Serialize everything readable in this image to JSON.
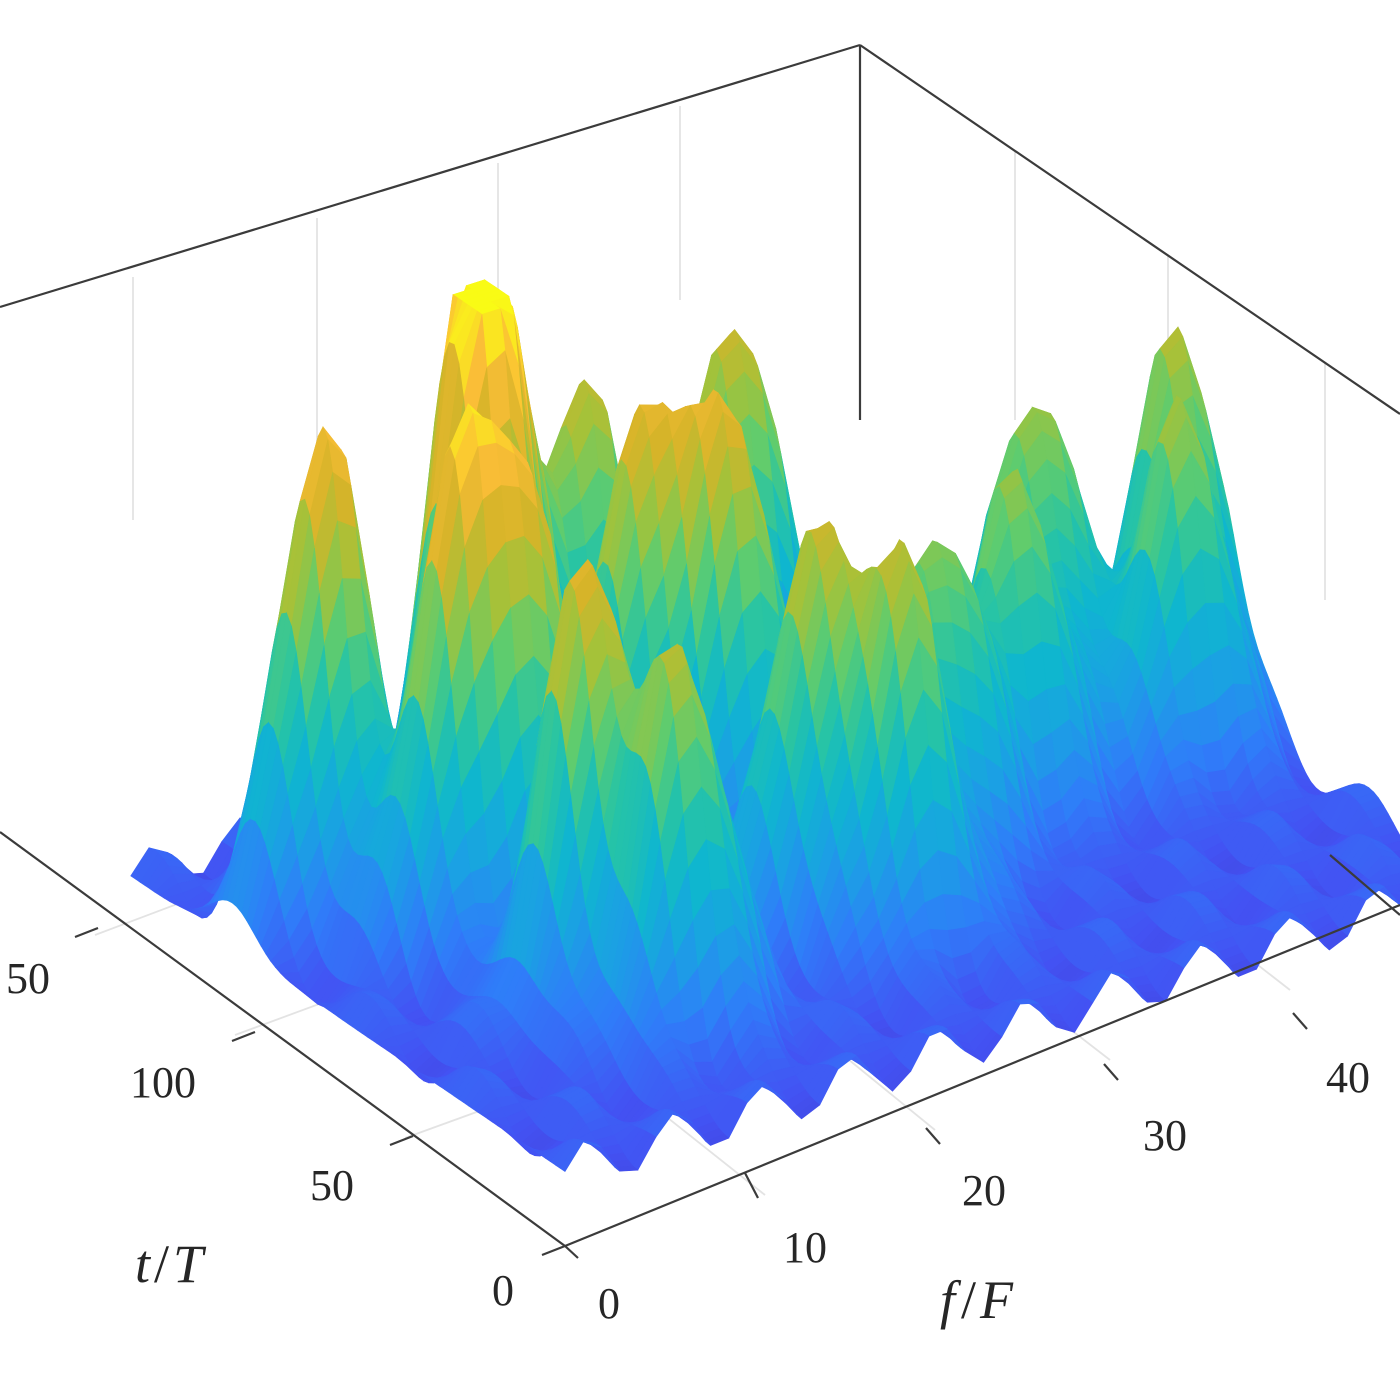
{
  "chart_data": {
    "type": "surface3d",
    "title": "",
    "colormap": "parula",
    "colormap_stops": [
      "#3e26a8",
      "#4352f3",
      "#2f7df9",
      "#1ba0e4",
      "#0fb6cf",
      "#27c4a5",
      "#5fcc6e",
      "#a3c23a",
      "#d6b429",
      "#fbbe37",
      "#f9fb15"
    ],
    "x_axis": {
      "label": "f/F",
      "label_parts": [
        "f",
        "/",
        "F"
      ],
      "ticks": [
        0,
        10,
        20,
        30,
        40
      ],
      "tick_labels": [
        "0",
        "10",
        "20",
        "30",
        "40"
      ],
      "range": [
        0,
        50
      ]
    },
    "y_axis": {
      "label": "t/T",
      "label_parts": [
        "t",
        "/",
        "T"
      ],
      "ticks": [
        0,
        50,
        100,
        50
      ],
      "tick_labels": [
        "0",
        "50",
        "100",
        "50"
      ],
      "range": [
        0,
        150
      ]
    },
    "z_axis": {
      "label": "",
      "ticks": [],
      "tick_labels": []
    },
    "grid": true,
    "box": true,
    "view": "3d perspective, azimuth approx -35deg, elevation approx 30deg",
    "surface_peaks": [
      {
        "f": 5,
        "t": 115,
        "height": 0.88,
        "color": "orange-yellow"
      },
      {
        "f": 14,
        "t": 118,
        "height": 0.85,
        "color": "yellow"
      },
      {
        "f": 16,
        "t": 128,
        "height": 0.8,
        "color": "yellow-green"
      },
      {
        "f": 22,
        "t": 132,
        "height": 0.72,
        "color": "green"
      },
      {
        "f": 30,
        "t": 130,
        "height": 0.8,
        "color": "orange-green"
      },
      {
        "f": 20,
        "t": 100,
        "height": 0.78,
        "color": "orange"
      },
      {
        "f": 8,
        "t": 90,
        "height": 0.75,
        "color": "orange"
      },
      {
        "f": 12,
        "t": 88,
        "height": 0.72,
        "color": "orange"
      },
      {
        "f": 24,
        "t": 90,
        "height": 0.72,
        "color": "orange"
      },
      {
        "f": 10,
        "t": 55,
        "height": 0.82,
        "color": "orange"
      },
      {
        "f": 12,
        "t": 35,
        "height": 0.7,
        "color": "orange-green"
      },
      {
        "f": 22,
        "t": 55,
        "height": 0.7,
        "color": "yellow-green"
      },
      {
        "f": 25,
        "t": 40,
        "height": 0.68,
        "color": "green"
      },
      {
        "f": 30,
        "t": 60,
        "height": 0.66,
        "color": "green"
      },
      {
        "f": 36,
        "t": 70,
        "height": 0.65,
        "color": "green"
      },
      {
        "f": 40,
        "t": 90,
        "height": 0.7,
        "color": "yellow-green"
      },
      {
        "f": 45,
        "t": 70,
        "height": 0.66,
        "color": "green"
      },
      {
        "f": 48,
        "t": 90,
        "height": 0.7,
        "color": "yellow-green"
      }
    ],
    "z_min_color": "#3e26a8",
    "z_max_color": "#f9fb15"
  }
}
